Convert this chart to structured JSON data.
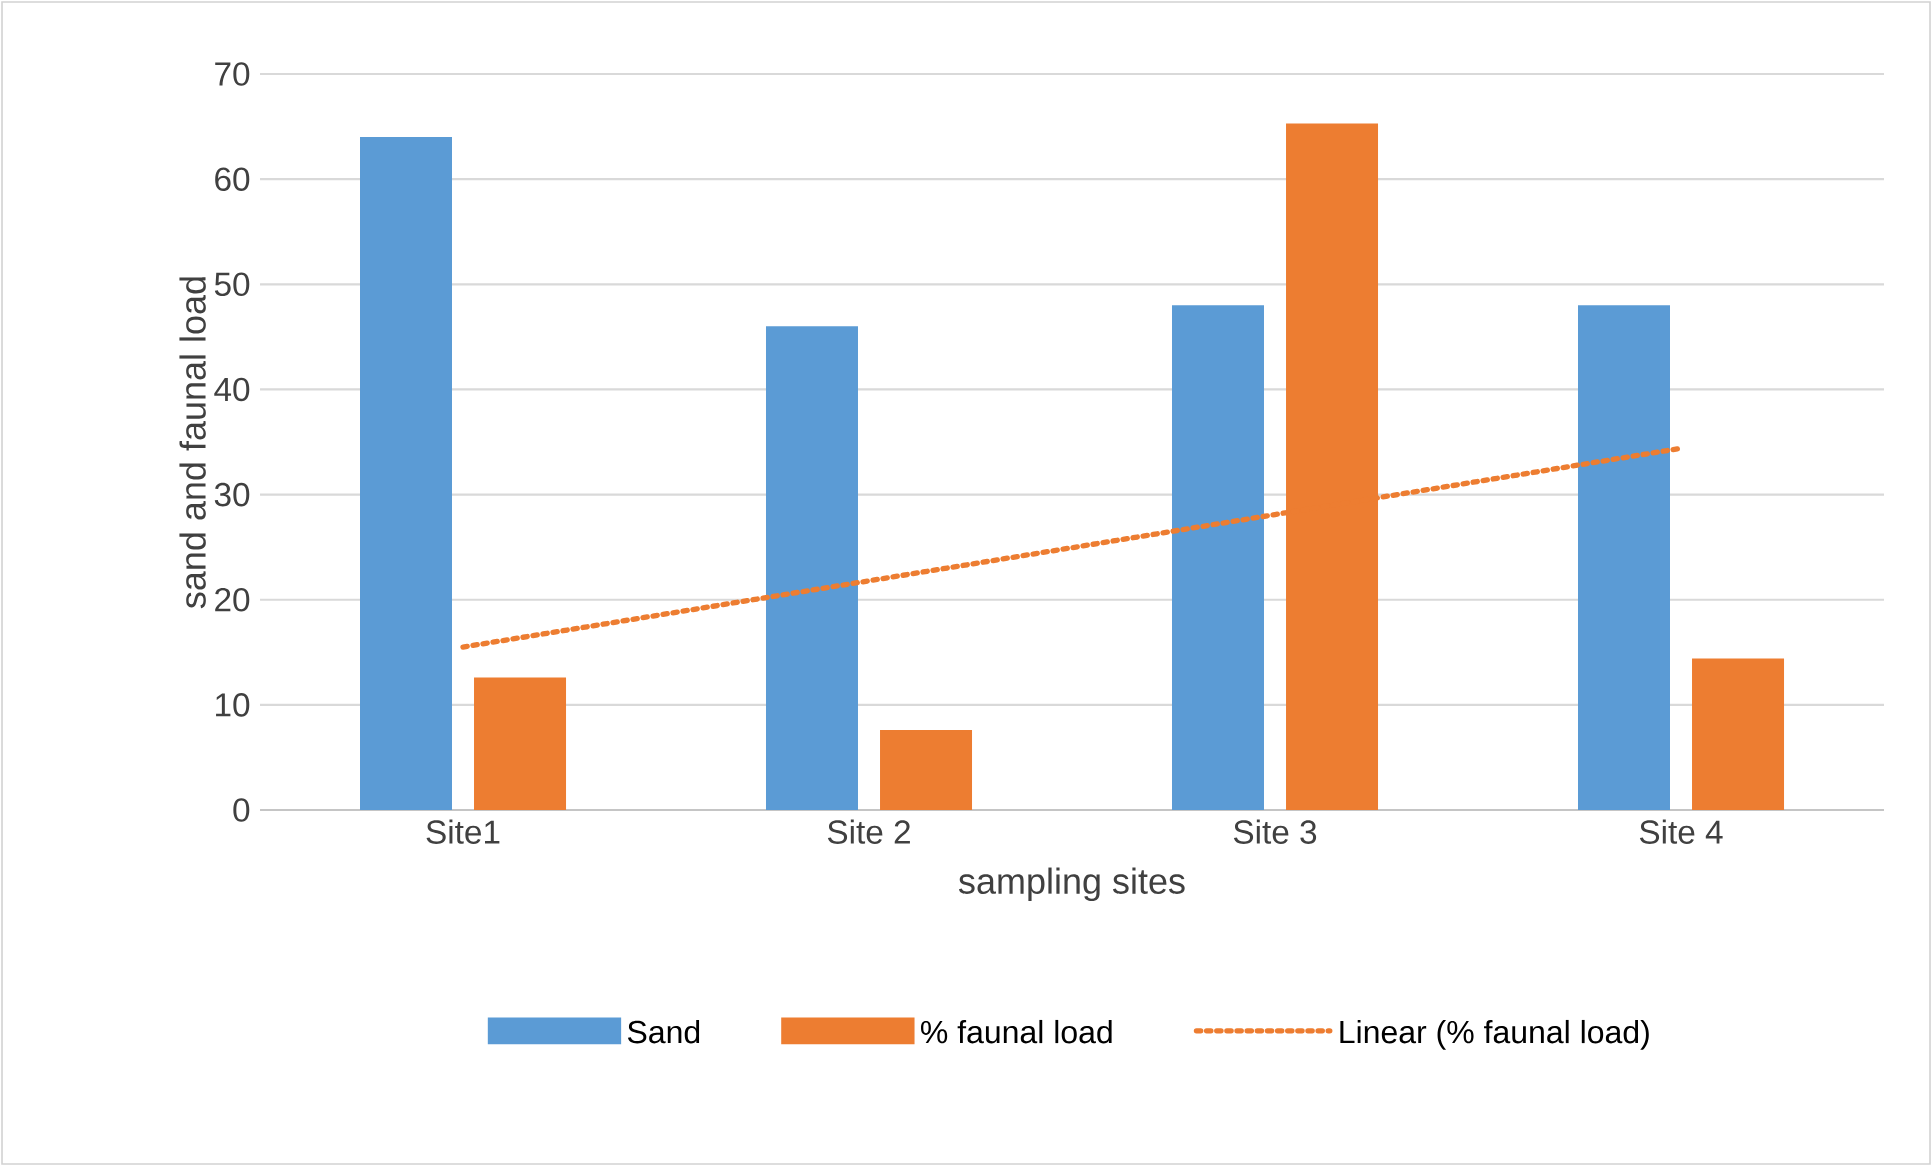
{
  "chart_data": {
    "type": "bar",
    "xlabel": "sampling sites",
    "ylabel": "sand and faunal load",
    "categories": [
      "Site1",
      "Site 2",
      "Site 3",
      "Site 4"
    ],
    "series": [
      {
        "name": "Sand",
        "color": "#5b9bd5",
        "values": [
          64,
          46,
          48,
          48
        ]
      },
      {
        "name": "% faunal load",
        "color": "#ed7d31",
        "values": [
          12.6,
          7.6,
          65.3,
          14.4
        ]
      },
      {
        "name": "Linear (% faunal load)",
        "type": "line",
        "line_style": "dotted",
        "color": "#ed7d31",
        "values": [
          15.5,
          21.8,
          28.1,
          34.4
        ]
      }
    ],
    "ylim": [
      0,
      70
    ],
    "yticks": [
      0,
      10,
      20,
      30,
      40,
      50,
      60,
      70
    ],
    "grid": "y",
    "legend": "bottom"
  }
}
